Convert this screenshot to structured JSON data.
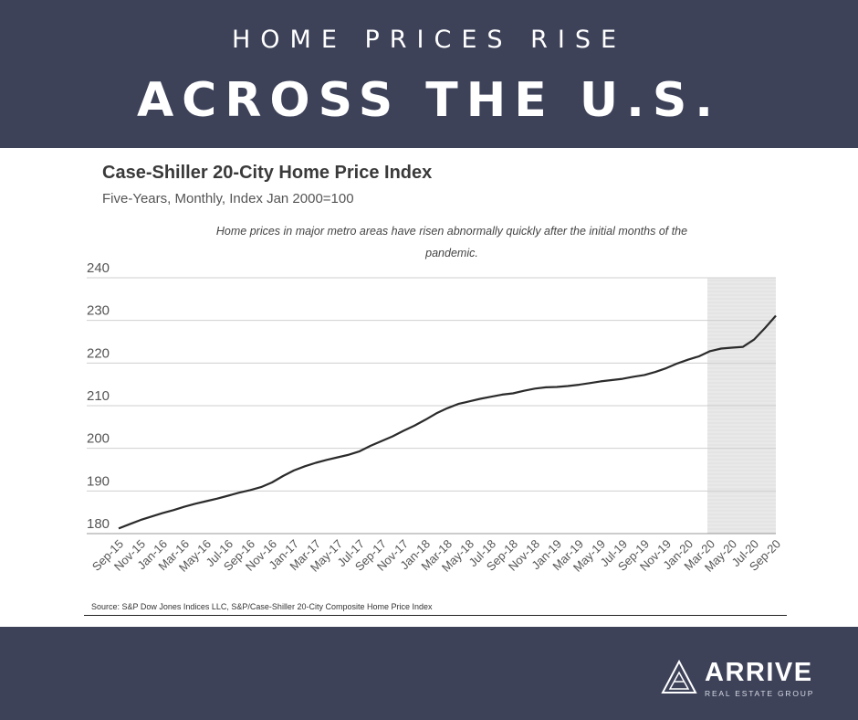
{
  "header": {
    "line1": "HOME PRICES RISE",
    "line2": "ACROSS THE U.S."
  },
  "chart": {
    "title": "Case-Shiller 20-City Home Price Index",
    "subtitle": "Five-Years, Monthly, Index Jan 2000=100",
    "note": "Home prices in major metro areas have risen abnormally quickly after the initial months of the pandemic.",
    "source": "Source:  S&P Dow Jones Indices LLC, S&P/Case-Shiller 20-City Composite Home Price Index"
  },
  "logo": {
    "name": "ARRIVE",
    "tagline": "REAL ESTATE GROUP"
  },
  "colors": {
    "band": "#3d4259",
    "line": "#2b2b2b",
    "shade": "#e9e9e9",
    "grid": "#cfcfcf"
  },
  "chart_data": {
    "type": "line",
    "title": "Case-Shiller 20-City Home Price Index",
    "subtitle": "Five-Years, Monthly, Index Jan 2000=100",
    "xlabel": "",
    "ylabel": "",
    "ylim": [
      180,
      240
    ],
    "yticks": [
      180,
      190,
      200,
      210,
      220,
      230,
      240
    ],
    "grid": true,
    "legend": "none",
    "shaded_period": [
      "Mar-20",
      "Sep-20"
    ],
    "xtick_labels": [
      "Sep-15",
      "Nov-15",
      "Jan-16",
      "Mar-16",
      "May-16",
      "Jul-16",
      "Sep-16",
      "Nov-16",
      "Jan-17",
      "Mar-17",
      "May-17",
      "Jul-17",
      "Sep-17",
      "Nov-17",
      "Jan-18",
      "Mar-18",
      "May-18",
      "Jul-18",
      "Sep-18",
      "Nov-18",
      "Jan-19",
      "Mar-19",
      "May-19",
      "Jul-19",
      "Sep-19",
      "Nov-19",
      "Jan-20",
      "Mar-20",
      "May-20",
      "Jul-20",
      "Sep-20"
    ],
    "x": [
      "Sep-15",
      "Oct-15",
      "Nov-15",
      "Dec-15",
      "Jan-16",
      "Feb-16",
      "Mar-16",
      "Apr-16",
      "May-16",
      "Jun-16",
      "Jul-16",
      "Aug-16",
      "Sep-16",
      "Oct-16",
      "Nov-16",
      "Dec-16",
      "Jan-17",
      "Feb-17",
      "Mar-17",
      "Apr-17",
      "May-17",
      "Jun-17",
      "Jul-17",
      "Aug-17",
      "Sep-17",
      "Oct-17",
      "Nov-17",
      "Dec-17",
      "Jan-18",
      "Feb-18",
      "Mar-18",
      "Apr-18",
      "May-18",
      "Jun-18",
      "Jul-18",
      "Aug-18",
      "Sep-18",
      "Oct-18",
      "Nov-18",
      "Dec-18",
      "Jan-19",
      "Feb-19",
      "Mar-19",
      "Apr-19",
      "May-19",
      "Jun-19",
      "Jul-19",
      "Aug-19",
      "Sep-19",
      "Oct-19",
      "Nov-19",
      "Dec-19",
      "Jan-20",
      "Feb-20",
      "Mar-20",
      "Apr-20",
      "May-20",
      "Jun-20",
      "Jul-20",
      "Aug-20",
      "Sep-20"
    ],
    "series": [
      {
        "values": [
          181.2,
          182.2,
          183.2,
          184.0,
          184.8,
          185.5,
          186.3,
          187.0,
          187.6,
          188.2,
          188.9,
          189.6,
          190.2,
          190.9,
          192.0,
          193.5,
          194.8,
          195.8,
          196.6,
          197.3,
          197.9,
          198.5,
          199.3,
          200.6,
          201.7,
          202.8,
          204.1,
          205.3,
          206.7,
          208.2,
          209.4,
          210.4,
          211.0,
          211.6,
          212.1,
          212.6,
          212.9,
          213.5,
          214.0,
          214.3,
          214.4,
          214.6,
          214.9,
          215.3,
          215.7,
          216.0,
          216.3,
          216.8,
          217.2,
          217.9,
          218.8,
          219.9,
          220.8,
          221.6,
          222.8,
          223.4,
          223.6,
          223.8,
          225.5,
          228.2,
          231.1
        ]
      }
    ]
  }
}
